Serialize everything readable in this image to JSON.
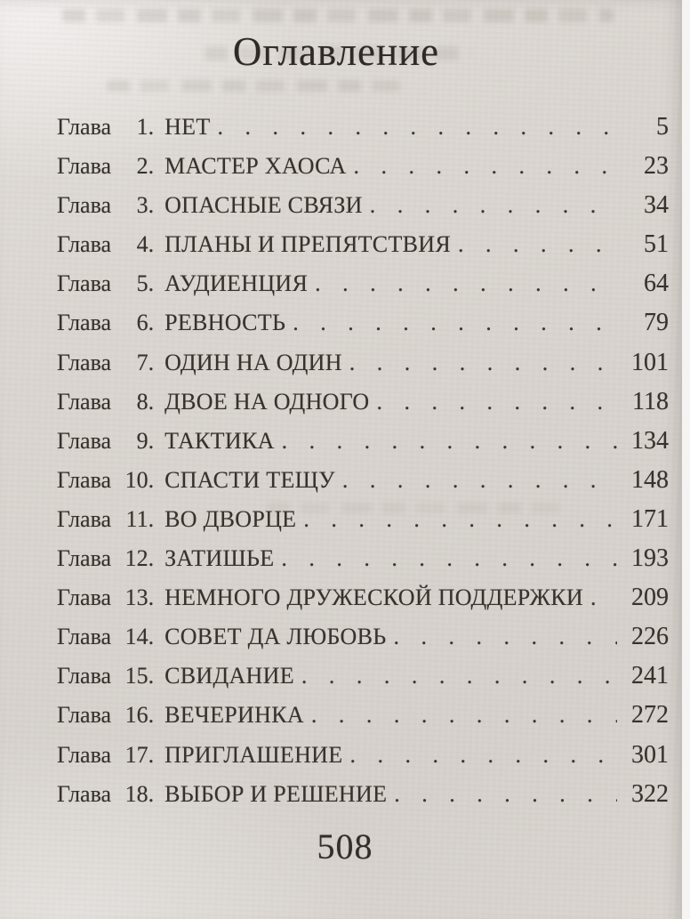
{
  "page": {
    "title": "Оглавление",
    "folio": "508"
  },
  "toc": {
    "chapter_word": "Глава",
    "entries": [
      {
        "number": "1.",
        "title": "НЕТ",
        "page": "5"
      },
      {
        "number": "2.",
        "title": "МАСТЕР ХАОСА",
        "page": "23"
      },
      {
        "number": "3.",
        "title": "ОПАСНЫЕ СВЯЗИ",
        "page": "34"
      },
      {
        "number": "4.",
        "title": "ПЛАНЫ И ПРЕПЯТСТВИЯ",
        "page": "51"
      },
      {
        "number": "5.",
        "title": "АУДИЕНЦИЯ",
        "page": "64"
      },
      {
        "number": "6.",
        "title": "РЕВНОСТЬ",
        "page": "79"
      },
      {
        "number": "7.",
        "title": "ОДИН НА ОДИН",
        "page": "101"
      },
      {
        "number": "8.",
        "title": "ДВОЕ НА ОДНОГО",
        "page": "118"
      },
      {
        "number": "9.",
        "title": "ТАКТИКА",
        "page": "134"
      },
      {
        "number": "10.",
        "title": "СПАСТИ ТЕЩУ",
        "page": "148"
      },
      {
        "number": "11.",
        "title": "ВО ДВОРЦЕ",
        "page": "171"
      },
      {
        "number": "12.",
        "title": "ЗАТИШЬЕ",
        "page": "193"
      },
      {
        "number": "13.",
        "title": "НЕМНОГО ДРУЖЕСКОЙ ПОДДЕРЖКИ",
        "page": "209"
      },
      {
        "number": "14.",
        "title": "СОВЕТ ДА ЛЮБОВЬ",
        "page": "226"
      },
      {
        "number": "15.",
        "title": "СВИДАНИЕ",
        "page": "241"
      },
      {
        "number": "16.",
        "title": "ВЕЧЕРИНКА",
        "page": "272"
      },
      {
        "number": "17.",
        "title": "ПРИГЛАШЕНИЕ",
        "page": "301"
      },
      {
        "number": "18.",
        "title": "ВЫБОР И РЕШЕНИЕ",
        "page": "322"
      }
    ]
  },
  "colors": {
    "paper": "#d7d2cd",
    "ink": "#37322c",
    "scan_edge": "#f5f4f2"
  }
}
